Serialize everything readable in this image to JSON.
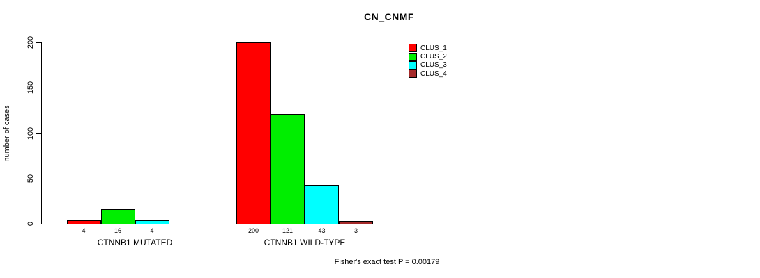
{
  "chart_data": {
    "type": "bar",
    "title": "CN_CNMF",
    "ylabel": "number of cases",
    "xlabel": "",
    "ylim": [
      0,
      200
    ],
    "yticks": [
      0,
      50,
      100,
      150,
      200
    ],
    "grid": false,
    "categories": [
      "CTNNB1 MUTATED",
      "CTNNB1 WILD-TYPE"
    ],
    "series": [
      {
        "name": "CLUS_1",
        "color": "#ff0000",
        "values": [
          4,
          200
        ]
      },
      {
        "name": "CLUS_2",
        "color": "#00ee00",
        "values": [
          16,
          121
        ]
      },
      {
        "name": "CLUS_3",
        "color": "#00ffff",
        "values": [
          4,
          43
        ]
      },
      {
        "name": "CLUS_4",
        "color": "#a52a2a",
        "values": [
          0,
          3
        ]
      }
    ],
    "bar_value_labels": [
      [
        "4",
        "16",
        "4",
        ""
      ],
      [
        "200",
        "121",
        "43",
        "3"
      ]
    ],
    "legend_position": "top-right",
    "annotation": "Fisher's exact test P = 0.00179"
  }
}
